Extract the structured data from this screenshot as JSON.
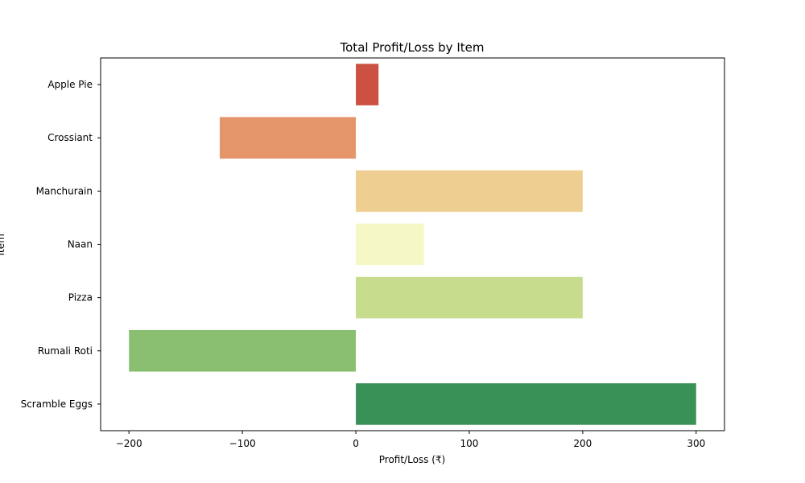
{
  "chart_data": {
    "type": "bar",
    "orientation": "horizontal",
    "title": "Total Profit/Loss by Item",
    "xlabel": "Profit/Loss (₹)",
    "ylabel": "Item",
    "categories": [
      "Apple Pie",
      "Crossiant",
      "Manchurain",
      "Naan",
      "Pizza",
      "Rumali Roti",
      "Scramble Eggs"
    ],
    "values": [
      20,
      -120,
      200,
      60,
      200,
      -200,
      300
    ],
    "colors": [
      "#cb5242",
      "#e5956a",
      "#eecf91",
      "#f6f7c6",
      "#c7dd8d",
      "#8abf72",
      "#3a9158"
    ],
    "xlim": [
      -225,
      325
    ],
    "xticks": [
      -200,
      -100,
      0,
      100,
      200,
      300
    ],
    "xtick_labels": [
      "−200",
      "−100",
      "0",
      "100",
      "200",
      "300"
    ],
    "grid": false,
    "legend": "none"
  }
}
